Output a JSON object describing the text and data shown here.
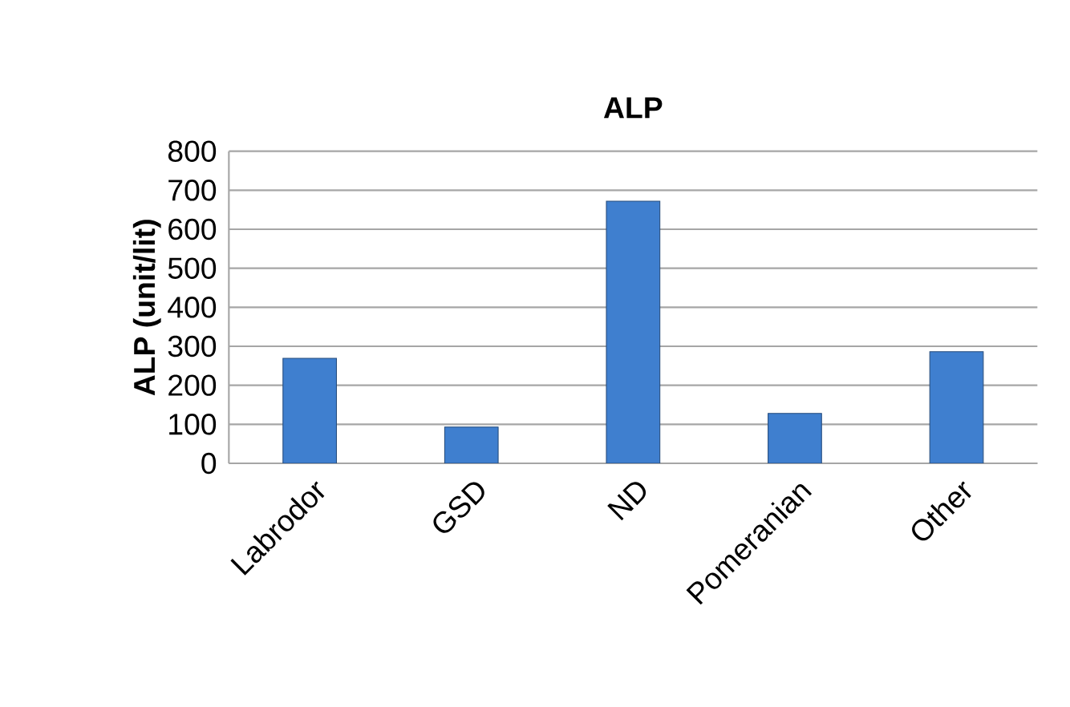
{
  "chart_data": {
    "type": "bar",
    "title": "ALP",
    "ylabel": "ALP (unit/lit)",
    "categories": [
      "Labrodor",
      "GSD",
      "ND",
      "Pomeranian",
      "Other"
    ],
    "values": [
      269,
      93,
      672,
      128,
      286
    ],
    "color": "#3f7fcf",
    "ylim": [
      0,
      800
    ],
    "yticks": [
      0,
      100,
      200,
      300,
      400,
      500,
      600,
      700,
      800
    ],
    "grid": "y"
  }
}
